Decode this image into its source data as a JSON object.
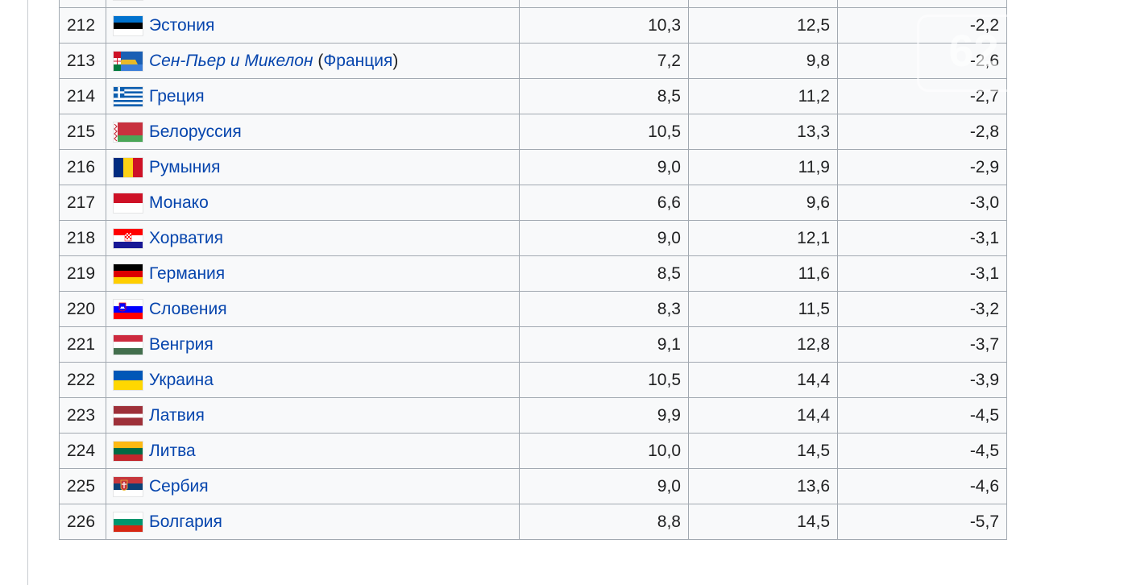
{
  "table": {
    "partial_top_row": {
      "rank": "",
      "country": ""
    },
    "rows": [
      {
        "rank": "212",
        "country": "Эстония",
        "flag_icon": "estonia-flag-icon",
        "birth": "10,3",
        "death": "12,5",
        "growth": "-2,2"
      },
      {
        "rank": "213",
        "country": "Сен-Пьер и Микелон",
        "country_italic": true,
        "country_note_open": " (",
        "country_note": "Франция",
        "country_note_close": ")",
        "flag_icon": "saint-pierre-and-miquelon-flag-icon",
        "birth": "7,2",
        "death": "9,8",
        "growth": "-2,6"
      },
      {
        "rank": "214",
        "country": "Греция",
        "flag_icon": "greece-flag-icon",
        "birth": "8,5",
        "death": "11,2",
        "growth": "-2,7"
      },
      {
        "rank": "215",
        "country": "Белоруссия",
        "flag_icon": "belarus-flag-icon",
        "birth": "10,5",
        "death": "13,3",
        "growth": "-2,8"
      },
      {
        "rank": "216",
        "country": "Румыния",
        "flag_icon": "romania-flag-icon",
        "birth": "9,0",
        "death": "11,9",
        "growth": "-2,9"
      },
      {
        "rank": "217",
        "country": "Монако",
        "flag_icon": "monaco-flag-icon",
        "birth": "6,6",
        "death": "9,6",
        "growth": "-3,0"
      },
      {
        "rank": "218",
        "country": "Хорватия",
        "flag_icon": "croatia-flag-icon",
        "birth": "9,0",
        "death": "12,1",
        "growth": "-3,1"
      },
      {
        "rank": "219",
        "country": "Германия",
        "flag_icon": "germany-flag-icon",
        "birth": "8,5",
        "death": "11,6",
        "growth": "-3,1"
      },
      {
        "rank": "220",
        "country": "Словения",
        "flag_icon": "slovenia-flag-icon",
        "birth": "8,3",
        "death": "11,5",
        "growth": "-3,2"
      },
      {
        "rank": "221",
        "country": "Венгрия",
        "flag_icon": "hungary-flag-icon",
        "birth": "9,1",
        "death": "12,8",
        "growth": "-3,7"
      },
      {
        "rank": "222",
        "country": "Украина",
        "flag_icon": "ukraine-flag-icon",
        "birth": "10,5",
        "death": "14,4",
        "growth": "-3,9"
      },
      {
        "rank": "223",
        "country": "Латвия",
        "flag_icon": "latvia-flag-icon",
        "birth": "9,9",
        "death": "14,4",
        "growth": "-4,5"
      },
      {
        "rank": "224",
        "country": "Литва",
        "flag_icon": "lithuania-flag-icon",
        "birth": "10,0",
        "death": "14,5",
        "growth": "-4,5"
      },
      {
        "rank": "225",
        "country": "Сербия",
        "flag_icon": "serbia-flag-icon",
        "birth": "9,0",
        "death": "13,6",
        "growth": "-4,6"
      },
      {
        "rank": "226",
        "country": "Болгария",
        "flag_icon": "bulgaria-flag-icon",
        "birth": "8,8",
        "death": "14,5",
        "growth": "-5,7"
      }
    ]
  },
  "watermark": {
    "text": "62"
  },
  "colors": {
    "link": "#0645ad",
    "text": "#202122",
    "table_bg": "#f8f9fa",
    "border": "#a2a9b1"
  }
}
